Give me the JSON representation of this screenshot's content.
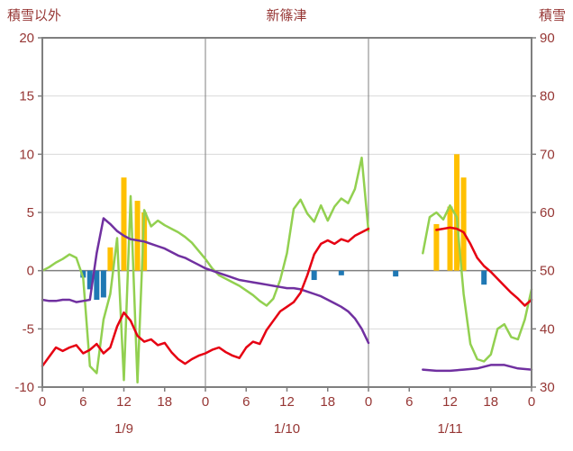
{
  "header": {
    "left_axis_title": "積雪以外",
    "chart_title": "新篠津",
    "right_axis_title": "積雪"
  },
  "chart_data": {
    "type": "line",
    "title": "新篠津",
    "left_axis": {
      "title": "積雪以外",
      "min": -10,
      "max": 20,
      "ticks": [
        20,
        15,
        10,
        5,
        0,
        -5,
        -10
      ]
    },
    "right_axis": {
      "title": "積雪",
      "min": 30,
      "max": 90,
      "ticks": [
        90,
        80,
        70,
        60,
        50,
        40,
        30
      ]
    },
    "x_axis": {
      "hours_min": 0,
      "hours_max": 72,
      "tick_step_hours": 6,
      "tick_labels": [
        "0",
        "6",
        "12",
        "18",
        "0",
        "6",
        "12",
        "18",
        "0",
        "6",
        "12",
        "18",
        "0"
      ],
      "day_labels": [
        "1/9",
        "1/10",
        "1/11"
      ]
    },
    "colors": {
      "text": "#963634",
      "border": "#7f7f7f",
      "grid_light": "#d9d9d9",
      "grid_dark": "#7f7f7f",
      "red_line": "#e60012",
      "green_line": "#92d050",
      "purple_line": "#7030a0",
      "orange_bars": "#ffc000",
      "blue_bars": "#1f78b4"
    },
    "series": [
      {
        "name": "orange-bars",
        "type": "bar",
        "color": "#ffc000",
        "bars": [
          [
            10,
            2
          ],
          [
            12,
            8
          ],
          [
            14,
            6
          ],
          [
            15,
            5
          ],
          [
            58,
            4
          ],
          [
            60,
            5.5
          ],
          [
            61,
            10
          ],
          [
            62,
            8
          ]
        ]
      },
      {
        "name": "blue-bars",
        "type": "bar",
        "color": "#1f78b4",
        "bars": [
          [
            6,
            -0.6
          ],
          [
            7,
            -1.6
          ],
          [
            8,
            -2.5
          ],
          [
            9,
            -2.3
          ],
          [
            40,
            -0.8
          ],
          [
            44,
            -0.4
          ],
          [
            52,
            -0.5
          ],
          [
            65,
            -1.2
          ]
        ]
      },
      {
        "name": "green-line",
        "type": "line",
        "color": "#92d050",
        "segments": [
          [
            [
              0,
              0.0
            ],
            [
              1,
              0.3
            ],
            [
              2,
              0.7
            ],
            [
              3,
              1.0
            ],
            [
              4,
              1.4
            ],
            [
              5,
              1.1
            ],
            [
              6,
              -0.6
            ],
            [
              7,
              -8.2
            ],
            [
              8,
              -8.8
            ],
            [
              9,
              -4.2
            ],
            [
              10,
              -2.0
            ],
            [
              11,
              2.8
            ],
            [
              12,
              -9.4
            ],
            [
              13,
              6.4
            ],
            [
              14,
              -9.6
            ],
            [
              15,
              5.2
            ],
            [
              16,
              3.8
            ],
            [
              17,
              4.3
            ],
            [
              18,
              3.9
            ],
            [
              19,
              3.6
            ],
            [
              20,
              3.3
            ],
            [
              21,
              2.9
            ],
            [
              22,
              2.4
            ],
            [
              23,
              1.7
            ],
            [
              24,
              1.0
            ],
            [
              25,
              0.2
            ],
            [
              26,
              -0.4
            ],
            [
              27,
              -0.7
            ],
            [
              28,
              -1.0
            ],
            [
              29,
              -1.3
            ],
            [
              30,
              -1.7
            ],
            [
              31,
              -2.1
            ],
            [
              32,
              -2.6
            ],
            [
              33,
              -3.0
            ],
            [
              34,
              -2.4
            ],
            [
              35,
              -0.8
            ],
            [
              36,
              1.5
            ],
            [
              37,
              5.3
            ],
            [
              38,
              6.1
            ],
            [
              39,
              4.9
            ],
            [
              40,
              4.2
            ],
            [
              41,
              5.6
            ],
            [
              42,
              4.3
            ],
            [
              43,
              5.5
            ],
            [
              44,
              6.2
            ],
            [
              45,
              5.8
            ],
            [
              46,
              7.0
            ],
            [
              47,
              9.7
            ],
            [
              48,
              3.4
            ]
          ],
          [
            [
              56,
              1.5
            ],
            [
              57,
              4.6
            ],
            [
              58,
              5.0
            ],
            [
              59,
              4.4
            ],
            [
              60,
              5.6
            ],
            [
              61,
              4.6
            ],
            [
              62,
              -2.0
            ],
            [
              63,
              -6.3
            ],
            [
              64,
              -7.6
            ],
            [
              65,
              -7.8
            ],
            [
              66,
              -7.2
            ],
            [
              67,
              -5.0
            ],
            [
              68,
              -4.6
            ],
            [
              69,
              -5.7
            ],
            [
              70,
              -5.9
            ],
            [
              71,
              -4.2
            ],
            [
              72,
              -1.6
            ]
          ]
        ]
      },
      {
        "name": "purple-line",
        "type": "line",
        "color": "#7030a0",
        "segments": [
          [
            [
              0,
              -2.5
            ],
            [
              1,
              -2.6
            ],
            [
              2,
              -2.6
            ],
            [
              3,
              -2.5
            ],
            [
              4,
              -2.5
            ],
            [
              5,
              -2.7
            ],
            [
              6,
              -2.6
            ],
            [
              7,
              -2.5
            ],
            [
              8,
              1.5
            ],
            [
              9,
              4.5
            ],
            [
              10,
              4.0
            ],
            [
              11,
              3.4
            ],
            [
              12,
              3.0
            ],
            [
              13,
              2.7
            ],
            [
              14,
              2.6
            ],
            [
              15,
              2.5
            ],
            [
              16,
              2.3
            ],
            [
              17,
              2.1
            ],
            [
              18,
              1.9
            ],
            [
              19,
              1.6
            ],
            [
              20,
              1.3
            ],
            [
              21,
              1.1
            ],
            [
              22,
              0.8
            ],
            [
              23,
              0.5
            ],
            [
              24,
              0.2
            ],
            [
              25,
              0.0
            ],
            [
              26,
              -0.2
            ],
            [
              27,
              -0.4
            ],
            [
              28,
              -0.6
            ],
            [
              29,
              -0.8
            ],
            [
              30,
              -0.9
            ],
            [
              31,
              -1.0
            ],
            [
              32,
              -1.1
            ],
            [
              33,
              -1.2
            ],
            [
              34,
              -1.3
            ],
            [
              35,
              -1.4
            ],
            [
              36,
              -1.5
            ],
            [
              37,
              -1.5
            ],
            [
              38,
              -1.6
            ],
            [
              39,
              -1.8
            ],
            [
              40,
              -2.0
            ],
            [
              41,
              -2.2
            ],
            [
              42,
              -2.5
            ],
            [
              43,
              -2.8
            ],
            [
              44,
              -3.1
            ],
            [
              45,
              -3.5
            ],
            [
              46,
              -4.1
            ],
            [
              47,
              -5.0
            ],
            [
              48,
              -6.2
            ]
          ],
          [
            [
              56,
              -8.5
            ],
            [
              58,
              -8.6
            ],
            [
              60,
              -8.6
            ],
            [
              62,
              -8.5
            ],
            [
              64,
              -8.4
            ],
            [
              66,
              -8.1
            ],
            [
              68,
              -8.1
            ],
            [
              70,
              -8.4
            ],
            [
              72,
              -8.5
            ]
          ]
        ]
      },
      {
        "name": "red-line",
        "type": "line",
        "color": "#e60012",
        "segments": [
          [
            [
              0,
              -8.2
            ],
            [
              1,
              -7.4
            ],
            [
              2,
              -6.6
            ],
            [
              3,
              -6.9
            ],
            [
              4,
              -6.6
            ],
            [
              5,
              -6.4
            ],
            [
              6,
              -7.1
            ],
            [
              7,
              -6.8
            ],
            [
              8,
              -6.3
            ],
            [
              9,
              -7.1
            ],
            [
              10,
              -6.6
            ],
            [
              11,
              -4.8
            ],
            [
              12,
              -3.6
            ],
            [
              13,
              -4.3
            ],
            [
              14,
              -5.6
            ],
            [
              15,
              -6.1
            ],
            [
              16,
              -5.9
            ],
            [
              17,
              -6.4
            ],
            [
              18,
              -6.2
            ],
            [
              19,
              -7.0
            ],
            [
              20,
              -7.6
            ],
            [
              21,
              -8.0
            ],
            [
              22,
              -7.6
            ],
            [
              23,
              -7.3
            ],
            [
              24,
              -7.1
            ],
            [
              25,
              -6.8
            ],
            [
              26,
              -6.6
            ],
            [
              27,
              -7.0
            ],
            [
              28,
              -7.3
            ],
            [
              29,
              -7.5
            ],
            [
              30,
              -6.6
            ],
            [
              31,
              -6.1
            ],
            [
              32,
              -6.3
            ],
            [
              33,
              -5.1
            ],
            [
              34,
              -4.3
            ],
            [
              35,
              -3.5
            ],
            [
              36,
              -3.1
            ],
            [
              37,
              -2.7
            ],
            [
              38,
              -1.9
            ],
            [
              39,
              -0.4
            ],
            [
              40,
              1.4
            ],
            [
              41,
              2.3
            ],
            [
              42,
              2.6
            ],
            [
              43,
              2.3
            ],
            [
              44,
              2.7
            ],
            [
              45,
              2.5
            ],
            [
              46,
              3.0
            ],
            [
              47,
              3.3
            ],
            [
              48,
              3.6
            ]
          ],
          [
            [
              58,
              3.5
            ],
            [
              59,
              3.6
            ],
            [
              60,
              3.7
            ],
            [
              61,
              3.6
            ],
            [
              62,
              3.3
            ],
            [
              63,
              2.3
            ],
            [
              64,
              1.1
            ],
            [
              65,
              0.4
            ],
            [
              66,
              -0.1
            ],
            [
              67,
              -0.7
            ],
            [
              68,
              -1.3
            ],
            [
              69,
              -1.9
            ],
            [
              70,
              -2.4
            ],
            [
              71,
              -3.0
            ],
            [
              72,
              -2.5
            ]
          ]
        ]
      }
    ]
  }
}
